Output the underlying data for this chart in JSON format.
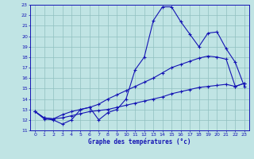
{
  "xlabel": "Graphe des températures (°c)",
  "xlim": [
    -0.5,
    23.5
  ],
  "ylim": [
    11,
    23
  ],
  "xticks": [
    0,
    1,
    2,
    3,
    4,
    5,
    6,
    7,
    8,
    9,
    10,
    11,
    12,
    13,
    14,
    15,
    16,
    17,
    18,
    19,
    20,
    21,
    22,
    23
  ],
  "yticks": [
    11,
    12,
    13,
    14,
    15,
    16,
    17,
    18,
    19,
    20,
    21,
    22,
    23
  ],
  "background_color": "#c0e4e4",
  "grid_color": "#90c0c0",
  "line_color": "#1414b4",
  "line1_y": [
    12.8,
    12.1,
    12.0,
    11.6,
    12.0,
    13.0,
    13.2,
    12.0,
    12.7,
    13.0,
    14.0,
    16.8,
    18.0,
    21.5,
    22.8,
    22.8,
    21.4,
    20.2,
    19.0,
    20.3,
    20.4,
    18.8,
    17.5,
    15.2
  ],
  "line2_y": [
    12.8,
    12.2,
    12.1,
    12.5,
    12.8,
    13.0,
    13.2,
    13.5,
    14.0,
    14.4,
    14.8,
    15.2,
    15.6,
    16.0,
    16.5,
    17.0,
    17.3,
    17.6,
    17.9,
    18.1,
    18.0,
    17.8,
    15.2,
    15.5
  ],
  "line3_y": [
    12.8,
    12.2,
    12.1,
    12.2,
    12.4,
    12.6,
    12.8,
    12.9,
    13.0,
    13.2,
    13.4,
    13.6,
    13.8,
    14.0,
    14.2,
    14.5,
    14.7,
    14.9,
    15.1,
    15.2,
    15.3,
    15.4,
    15.2,
    15.5
  ]
}
